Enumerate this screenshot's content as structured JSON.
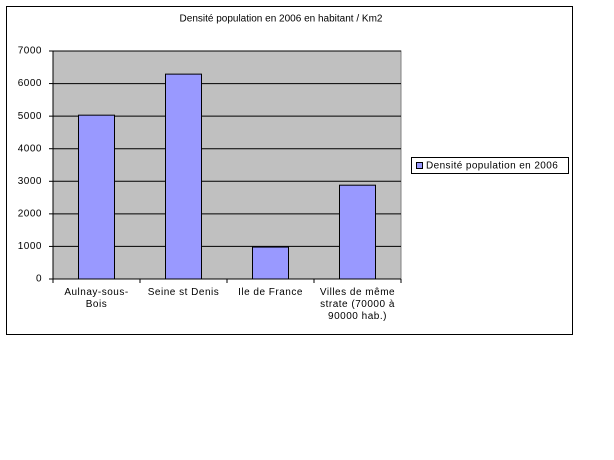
{
  "chart_data": {
    "type": "bar",
    "title": "Densité population en 2006 en habitant / Km2",
    "categories": [
      "Aulnay-sous-Bois",
      "Seine st Denis",
      "Ile de France",
      "Villes de même strate (70000 à 90000 hab.)"
    ],
    "series": [
      {
        "name": "Densité population en 2006",
        "color": "#9999ff",
        "values": [
          5030,
          6290,
          980,
          2880
        ]
      }
    ],
    "ylim": [
      0,
      7000
    ],
    "yticks": [
      0,
      1000,
      2000,
      3000,
      4000,
      5000,
      6000,
      7000
    ],
    "grid": true,
    "legend": "right"
  }
}
